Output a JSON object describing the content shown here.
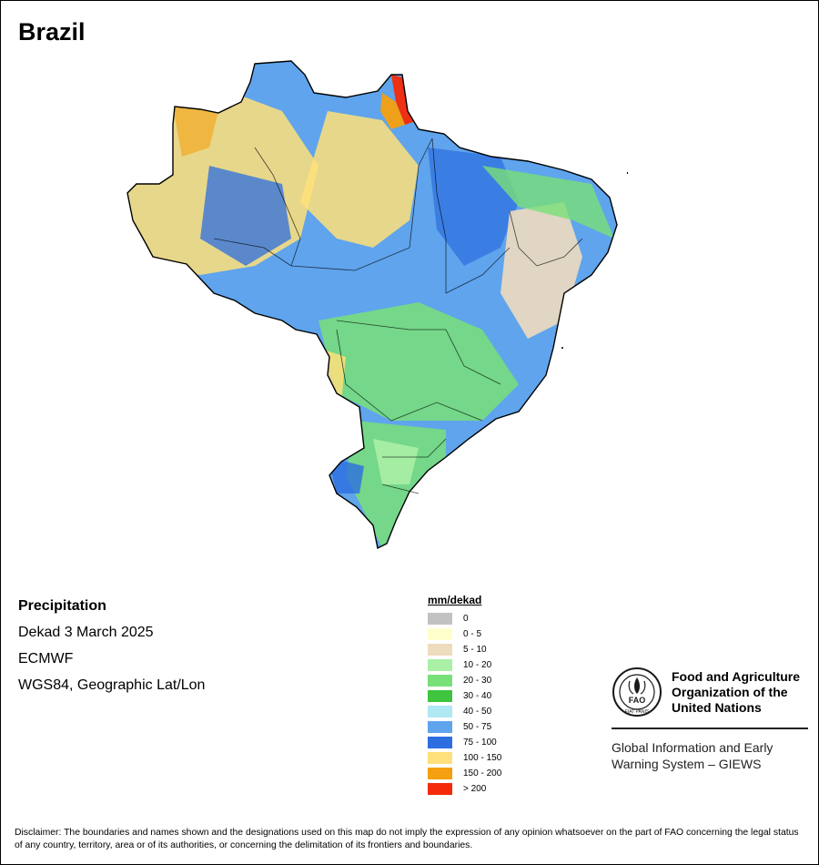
{
  "map": {
    "title": "Brazil",
    "variable": "Precipitation",
    "period": "Dekad 3 March 2025",
    "source": "ECMWF",
    "projection": "WGS84, Geographic Lat/Lon",
    "colors": {
      "border": "#000000",
      "background": "#ffffff"
    }
  },
  "legend": {
    "title": "mm/dekad",
    "classes": [
      {
        "label": "0",
        "color": "#c2c2c2"
      },
      {
        "label": "0 - 5",
        "color": "#ffffcc"
      },
      {
        "label": "5 - 10",
        "color": "#eedcbf"
      },
      {
        "label": "10 - 20",
        "color": "#aaf0a6"
      },
      {
        "label": "20 - 30",
        "color": "#78e078"
      },
      {
        "label": "30 - 40",
        "color": "#3ec43e"
      },
      {
        "label": "40 - 50",
        "color": "#b0e8f4"
      },
      {
        "label": "50 - 75",
        "color": "#5fa4ec"
      },
      {
        "label": "75 - 100",
        "color": "#2c6ee0"
      },
      {
        "label": "100 - 150",
        "color": "#ffe07a"
      },
      {
        "label": "150 - 200",
        "color": "#f5a010"
      },
      {
        "label": "> 200",
        "color": "#f52a0a"
      }
    ]
  },
  "fao": {
    "name_lines": [
      "Food and Agriculture",
      "Organization of the",
      "United Nations"
    ],
    "logo_text": "FAO",
    "logo_ring_text": "FIAT PANIS",
    "program_lines": [
      "Global Information and Early",
      "Warning System – GIEWS"
    ],
    "colors": {
      "logo": "#1a1a1a"
    }
  },
  "disclaimer": "Disclaimer: The boundaries and names shown and the designations used on this map do not imply the expression of any opinion whatsoever on the part of FAO concerning the legal status of any country, territory, area or of its authorities, or concerning the delimitation of its frontiers and boundaries."
}
